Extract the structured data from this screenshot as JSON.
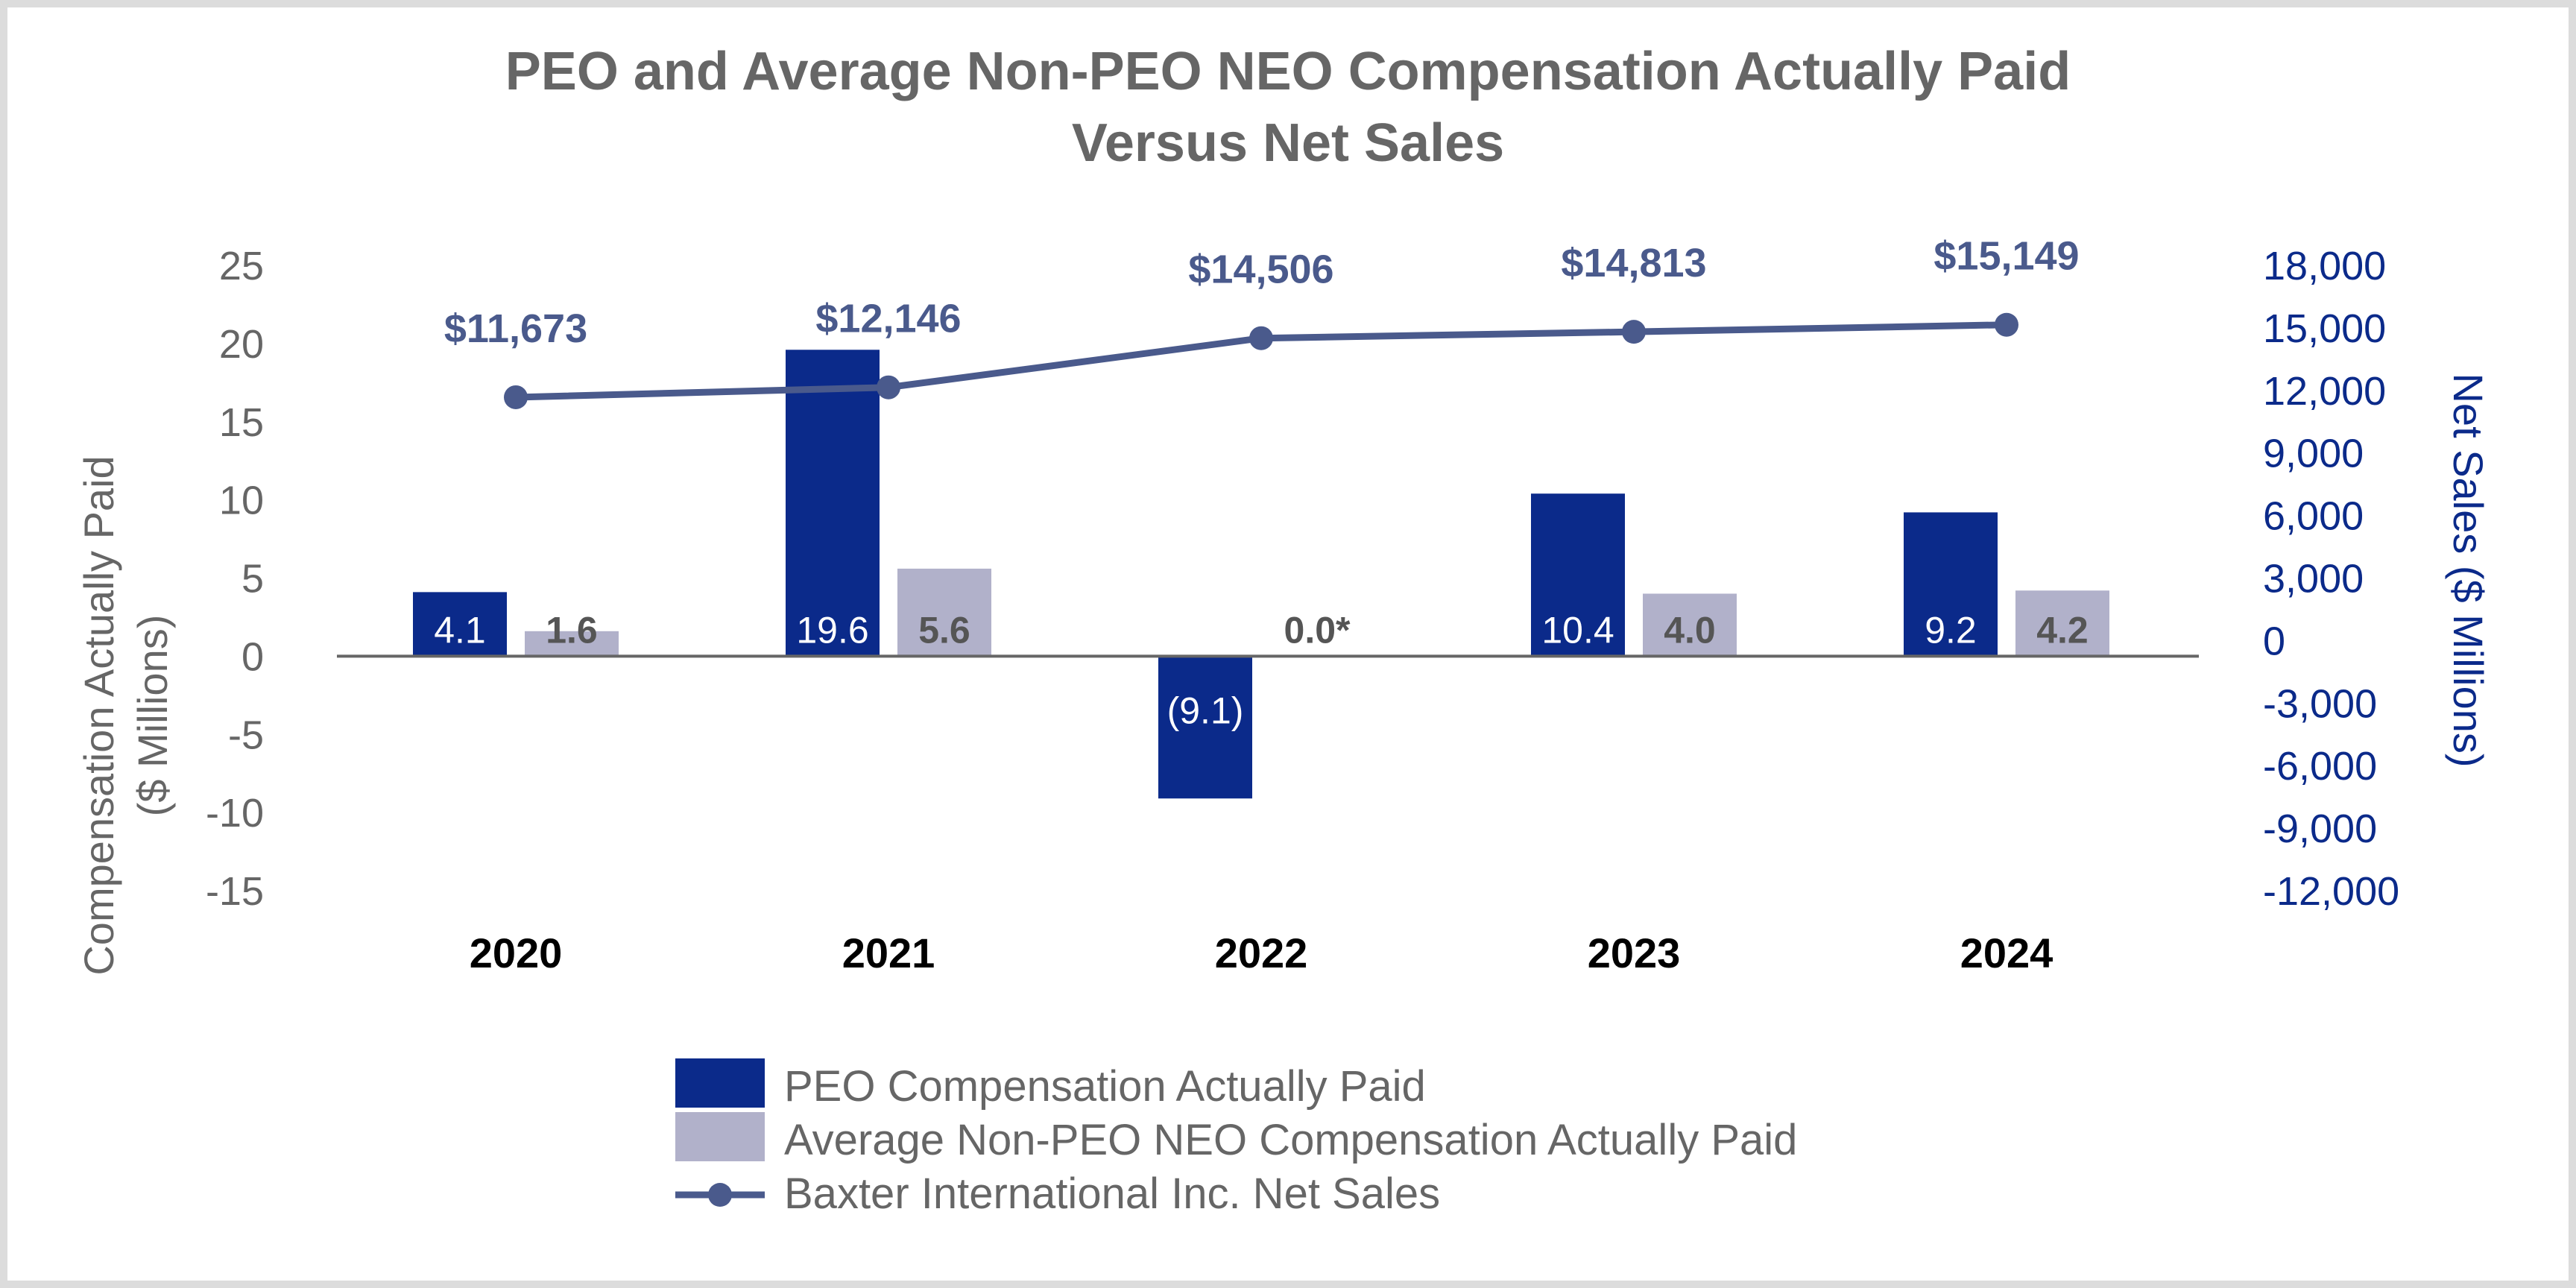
{
  "chart_data": {
    "type": "bar",
    "title": [
      "PEO and Average Non-PEO NEO Compensation Actually Paid",
      "Versus Net Sales"
    ],
    "categories": [
      "2020",
      "2021",
      "2022",
      "2023",
      "2024"
    ],
    "series": [
      {
        "name": "PEO Compensation Actually Paid",
        "type": "bar",
        "axis": "left",
        "color": "#0b2a8a",
        "values": [
          4.1,
          19.6,
          -9.1,
          10.4,
          9.2
        ],
        "labels": [
          "4.1",
          "19.6",
          "(9.1)",
          "10.4",
          "9.2"
        ]
      },
      {
        "name": "Average Non-PEO NEO Compensation Actually Paid",
        "type": "bar",
        "axis": "left",
        "color": "#b1b1ca",
        "values": [
          1.6,
          5.6,
          0.0,
          4.0,
          4.2
        ],
        "labels": [
          "1.6",
          "5.6",
          "0.0*",
          "4.0",
          "4.2"
        ]
      },
      {
        "name": "Baxter International Inc. Net Sales",
        "type": "line",
        "axis": "right",
        "color": "#4a5a8c",
        "values": [
          11673,
          12146,
          14506,
          14813,
          15149
        ],
        "labels": [
          "$11,673",
          "$12,146",
          "$14,506",
          "$14,813",
          "$15,149"
        ]
      }
    ],
    "y_left": {
      "label": [
        "Compensation Actually Paid",
        "($ Millions)"
      ],
      "ylim": [
        -15,
        25
      ],
      "ticks": [
        "25",
        "20",
        "15",
        "10",
        "5",
        "0",
        "-5",
        "-10",
        "-15"
      ],
      "tick_values": [
        25,
        20,
        15,
        10,
        5,
        0,
        -5,
        -10,
        -15
      ]
    },
    "y_right": {
      "label": "Net Sales ($ Millions)",
      "ylim": [
        -12000,
        18000
      ],
      "ticks": [
        "18,000",
        "15,000",
        "12,000",
        "9,000",
        "6,000",
        "3,000",
        "0",
        "-3,000",
        "-6,000",
        "-9,000",
        "-12,000"
      ],
      "tick_values": [
        18000,
        15000,
        12000,
        9000,
        6000,
        3000,
        0,
        -3000,
        -6000,
        -9000,
        -12000
      ]
    },
    "grid": false,
    "legend_position": "bottom-center"
  }
}
